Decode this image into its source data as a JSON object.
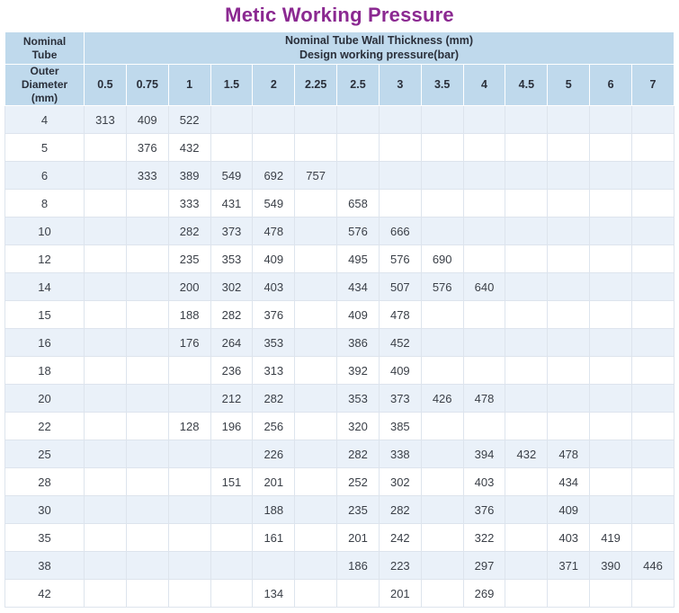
{
  "title": "Metic Working Pressure",
  "table": {
    "corner_top": "Nominal\nTube",
    "corner_bottom": "Outer\nDiameter\n(mm)",
    "header_main": "Nominal Tube Wall Thickness (mm)\nDesign working pressure(bar)"
  },
  "colors": {
    "title_purple": "#8B2991",
    "header_blue": "#BFD9EC",
    "row_tint": "#EAF1F9"
  },
  "chart_data": {
    "type": "table",
    "title": "Metic Working Pressure",
    "column_group_label": "Nominal Tube Wall Thickness (mm) / Design working pressure(bar)",
    "row_group_label": "Nominal Tube Outer Diameter (mm)",
    "columns": [
      "0.5",
      "0.75",
      "1",
      "1.5",
      "2",
      "2.25",
      "2.5",
      "3",
      "3.5",
      "4",
      "4.5",
      "5",
      "6",
      "7"
    ],
    "rows": [
      {
        "diameter": "4",
        "values": [
          313,
          409,
          522,
          null,
          null,
          null,
          null,
          null,
          null,
          null,
          null,
          null,
          null,
          null
        ]
      },
      {
        "diameter": "5",
        "values": [
          null,
          376,
          432,
          null,
          null,
          null,
          null,
          null,
          null,
          null,
          null,
          null,
          null,
          null
        ]
      },
      {
        "diameter": "6",
        "values": [
          null,
          333,
          389,
          549,
          692,
          757,
          null,
          null,
          null,
          null,
          null,
          null,
          null,
          null
        ]
      },
      {
        "diameter": "8",
        "values": [
          null,
          null,
          333,
          431,
          549,
          null,
          658,
          null,
          null,
          null,
          null,
          null,
          null,
          null
        ]
      },
      {
        "diameter": "10",
        "values": [
          null,
          null,
          282,
          373,
          478,
          null,
          576,
          666,
          null,
          null,
          null,
          null,
          null,
          null
        ]
      },
      {
        "diameter": "12",
        "values": [
          null,
          null,
          235,
          353,
          409,
          null,
          495,
          576,
          690,
          null,
          null,
          null,
          null,
          null
        ]
      },
      {
        "diameter": "14",
        "values": [
          null,
          null,
          200,
          302,
          403,
          null,
          434,
          507,
          576,
          640,
          null,
          null,
          null,
          null
        ]
      },
      {
        "diameter": "15",
        "values": [
          null,
          null,
          188,
          282,
          376,
          null,
          409,
          478,
          null,
          null,
          null,
          null,
          null,
          null
        ]
      },
      {
        "diameter": "16",
        "values": [
          null,
          null,
          176,
          264,
          353,
          null,
          386,
          452,
          null,
          null,
          null,
          null,
          null,
          null
        ]
      },
      {
        "diameter": "18",
        "values": [
          null,
          null,
          null,
          236,
          313,
          null,
          392,
          409,
          null,
          null,
          null,
          null,
          null,
          null
        ]
      },
      {
        "diameter": "20",
        "values": [
          null,
          null,
          null,
          212,
          282,
          null,
          353,
          373,
          426,
          478,
          null,
          null,
          null,
          null
        ]
      },
      {
        "diameter": "22",
        "values": [
          null,
          null,
          128,
          196,
          256,
          null,
          320,
          385,
          null,
          null,
          null,
          null,
          null,
          null
        ]
      },
      {
        "diameter": "25",
        "values": [
          null,
          null,
          null,
          null,
          226,
          null,
          282,
          338,
          null,
          394,
          432,
          478,
          null,
          null
        ]
      },
      {
        "diameter": "28",
        "values": [
          null,
          null,
          null,
          151,
          201,
          null,
          252,
          302,
          null,
          403,
          null,
          434,
          null,
          null
        ]
      },
      {
        "diameter": "30",
        "values": [
          null,
          null,
          null,
          null,
          188,
          null,
          235,
          282,
          null,
          376,
          null,
          409,
          null,
          null
        ]
      },
      {
        "diameter": "35",
        "values": [
          null,
          null,
          null,
          null,
          161,
          null,
          201,
          242,
          null,
          322,
          null,
          403,
          419,
          null
        ]
      },
      {
        "diameter": "38",
        "values": [
          null,
          null,
          null,
          null,
          null,
          null,
          186,
          223,
          null,
          297,
          null,
          371,
          390,
          446
        ]
      },
      {
        "diameter": "42",
        "values": [
          null,
          null,
          null,
          null,
          134,
          null,
          null,
          201,
          null,
          269,
          null,
          null,
          null,
          null
        ]
      }
    ]
  }
}
